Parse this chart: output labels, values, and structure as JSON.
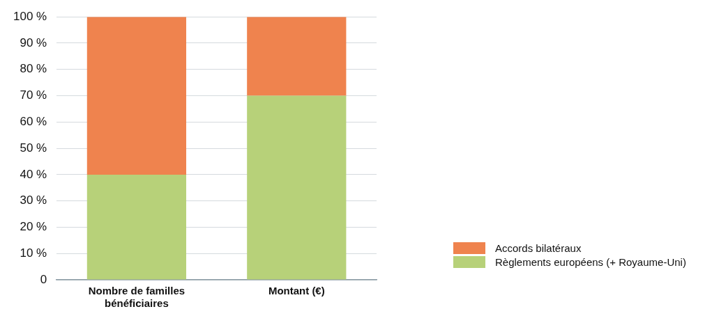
{
  "chart_data": {
    "type": "bar",
    "stacked": true,
    "categories": [
      "Nombre de familles bénéficiaires",
      "Montant (€)"
    ],
    "series": [
      {
        "name": "Règlements européens (+ Royaume-Uni)",
        "color": "#b7d179",
        "values": [
          40,
          70
        ]
      },
      {
        "name": "Accords bilatéraux",
        "color": "#ef834e",
        "values": [
          60,
          30
        ]
      }
    ],
    "ylim": [
      0,
      100
    ],
    "yticks": [
      {
        "value": 0,
        "label": "0"
      },
      {
        "value": 10,
        "label": "10 %"
      },
      {
        "value": 20,
        "label": "20 %"
      },
      {
        "value": 30,
        "label": "30 %"
      },
      {
        "value": 40,
        "label": "40 %"
      },
      {
        "value": 50,
        "label": "50 %"
      },
      {
        "value": 60,
        "label": "60 %"
      },
      {
        "value": 70,
        "label": "70 %"
      },
      {
        "value": 80,
        "label": "80 %"
      },
      {
        "value": 90,
        "label": "90 %"
      },
      {
        "value": 100,
        "label": "100 %"
      }
    ],
    "grid": "y",
    "legend": "bottom right"
  }
}
